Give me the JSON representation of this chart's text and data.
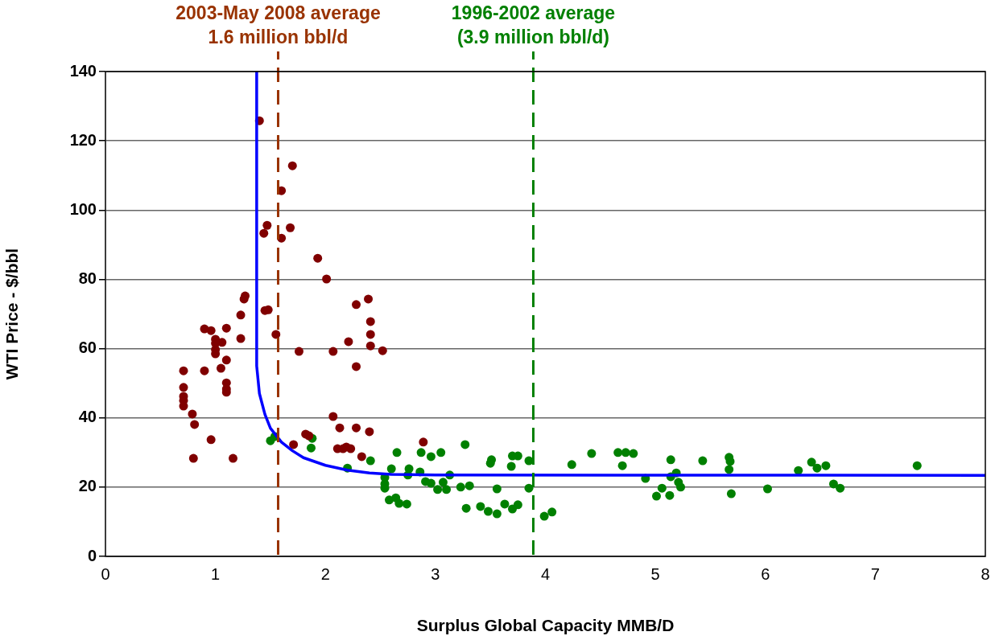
{
  "chart_data": {
    "type": "scatter",
    "xlabel": "Surplus Global Capacity MMB/D",
    "ylabel": "WTI Price - $/bbl",
    "xlim": [
      0,
      8
    ],
    "xticks": [
      0,
      1,
      2,
      3,
      4,
      5,
      6,
      7,
      8
    ],
    "ylim": [
      0,
      140
    ],
    "yticks": [
      0,
      20,
      40,
      60,
      80,
      100,
      120,
      140
    ],
    "grid": "y",
    "marker": "circle",
    "ref_lines": [
      {
        "axis": "x",
        "value": 1.57,
        "label": "2003-May 2008 average\n1.6 million bbl/d",
        "color": "#993300",
        "line_style": "dashed"
      },
      {
        "axis": "x",
        "value": 3.89,
        "label": "1996-2002 average\n(3.9 million bbl/d)",
        "color": "#008000",
        "line_style": "dashed"
      }
    ],
    "series": [
      {
        "color": "#800000",
        "x": [
          1.4,
          1.6,
          1.7,
          1.6,
          1.68,
          1.47,
          1.44,
          1.45,
          1.48,
          1.55,
          1.93,
          2.01,
          1.26,
          1.27,
          1.23,
          1.23,
          0.71,
          0.71,
          0.71,
          0.71,
          0.71,
          0.79,
          0.81,
          0.8,
          0.96,
          1.16,
          0.9,
          1.05,
          1.1,
          1.1,
          1.1,
          1.1,
          1.0,
          1.0,
          1.0,
          1.06,
          0.96,
          0.9,
          1.1,
          1.0,
          1.76,
          2.07,
          2.21,
          2.28,
          2.39,
          2.41,
          2.41,
          2.41,
          2.52,
          2.28,
          2.07,
          2.13,
          2.28,
          2.4,
          2.11,
          2.19,
          2.23,
          2.16,
          2.33,
          1.82,
          1.85,
          1.71,
          2.89
        ],
        "values": [
          125.8,
          105.6,
          112.8,
          91.9,
          94.9,
          95.6,
          93.3,
          71.0,
          71.2,
          64.1,
          86.1,
          80.1,
          74.3,
          75.2,
          69.7,
          62.9,
          53.6,
          48.8,
          46.2,
          45.0,
          43.4,
          41.1,
          38.1,
          28.3,
          33.7,
          28.3,
          53.6,
          54.3,
          50.1,
          48.3,
          47.4,
          56.7,
          61.5,
          58.5,
          59.7,
          61.8,
          65.2,
          65.7,
          65.9,
          62.7,
          59.2,
          59.2,
          62.0,
          72.7,
          74.3,
          67.8,
          64.1,
          60.8,
          59.4,
          54.8,
          40.4,
          37.1,
          37.1,
          36.0,
          31.1,
          31.6,
          31.1,
          31.1,
          28.8,
          35.3,
          34.8,
          32.3,
          33.0
        ]
      },
      {
        "color": "#008000",
        "x": [
          1.5,
          1.54,
          1.88,
          1.87,
          2.2,
          2.41,
          2.65,
          2.87,
          2.96,
          3.05,
          3.27,
          3.51,
          3.7,
          3.75,
          3.85,
          3.69,
          3.5,
          2.6,
          2.76,
          2.75,
          2.86,
          2.54,
          2.54,
          2.54,
          2.91,
          2.96,
          3.02,
          3.1,
          3.07,
          3.13,
          3.23,
          3.31,
          3.56,
          3.85,
          2.58,
          2.64,
          2.74,
          2.67,
          3.28,
          3.41,
          3.48,
          3.56,
          3.63,
          3.7,
          3.75,
          3.99,
          4.06,
          4.24,
          4.42,
          4.66,
          4.73,
          4.8,
          4.7,
          4.91,
          5.06,
          5.01,
          5.13,
          5.14,
          5.19,
          5.14,
          5.21,
          5.23,
          5.43,
          5.67,
          5.68,
          5.67,
          5.69,
          6.02,
          6.3,
          6.42,
          6.47,
          6.55,
          6.62,
          6.68,
          7.38
        ],
        "values": [
          33.4,
          34.6,
          34.1,
          31.3,
          25.5,
          27.6,
          30.0,
          30.0,
          28.8,
          30.0,
          32.3,
          27.9,
          29.0,
          29.0,
          27.6,
          26.0,
          26.9,
          25.3,
          25.3,
          23.5,
          24.4,
          22.8,
          20.9,
          19.7,
          21.6,
          21.1,
          19.3,
          19.3,
          21.4,
          23.5,
          20.0,
          20.4,
          19.5,
          19.7,
          16.3,
          16.9,
          15.1,
          15.3,
          13.9,
          14.4,
          13.0,
          12.3,
          15.1,
          13.7,
          14.9,
          11.6,
          12.8,
          26.5,
          29.7,
          30.0,
          30.0,
          29.7,
          26.2,
          22.5,
          19.7,
          17.4,
          17.6,
          27.9,
          24.1,
          23.0,
          21.4,
          20.0,
          27.6,
          28.6,
          27.4,
          25.1,
          18.1,
          19.5,
          24.8,
          27.2,
          25.5,
          26.2,
          20.9,
          19.7,
          26.2
        ]
      },
      {
        "type": "line",
        "color": "#0000ff",
        "marker": "none",
        "x": [
          1.375,
          1.375,
          1.4,
          1.45,
          1.5,
          1.6,
          1.7,
          1.8,
          2.0,
          2.2,
          2.4,
          2.6,
          3.0,
          8
        ],
        "values": [
          140,
          55,
          47,
          41,
          37,
          33,
          30.5,
          28.5,
          26.3,
          24.9,
          24.1,
          23.7,
          23.5,
          23.4
        ]
      }
    ]
  }
}
